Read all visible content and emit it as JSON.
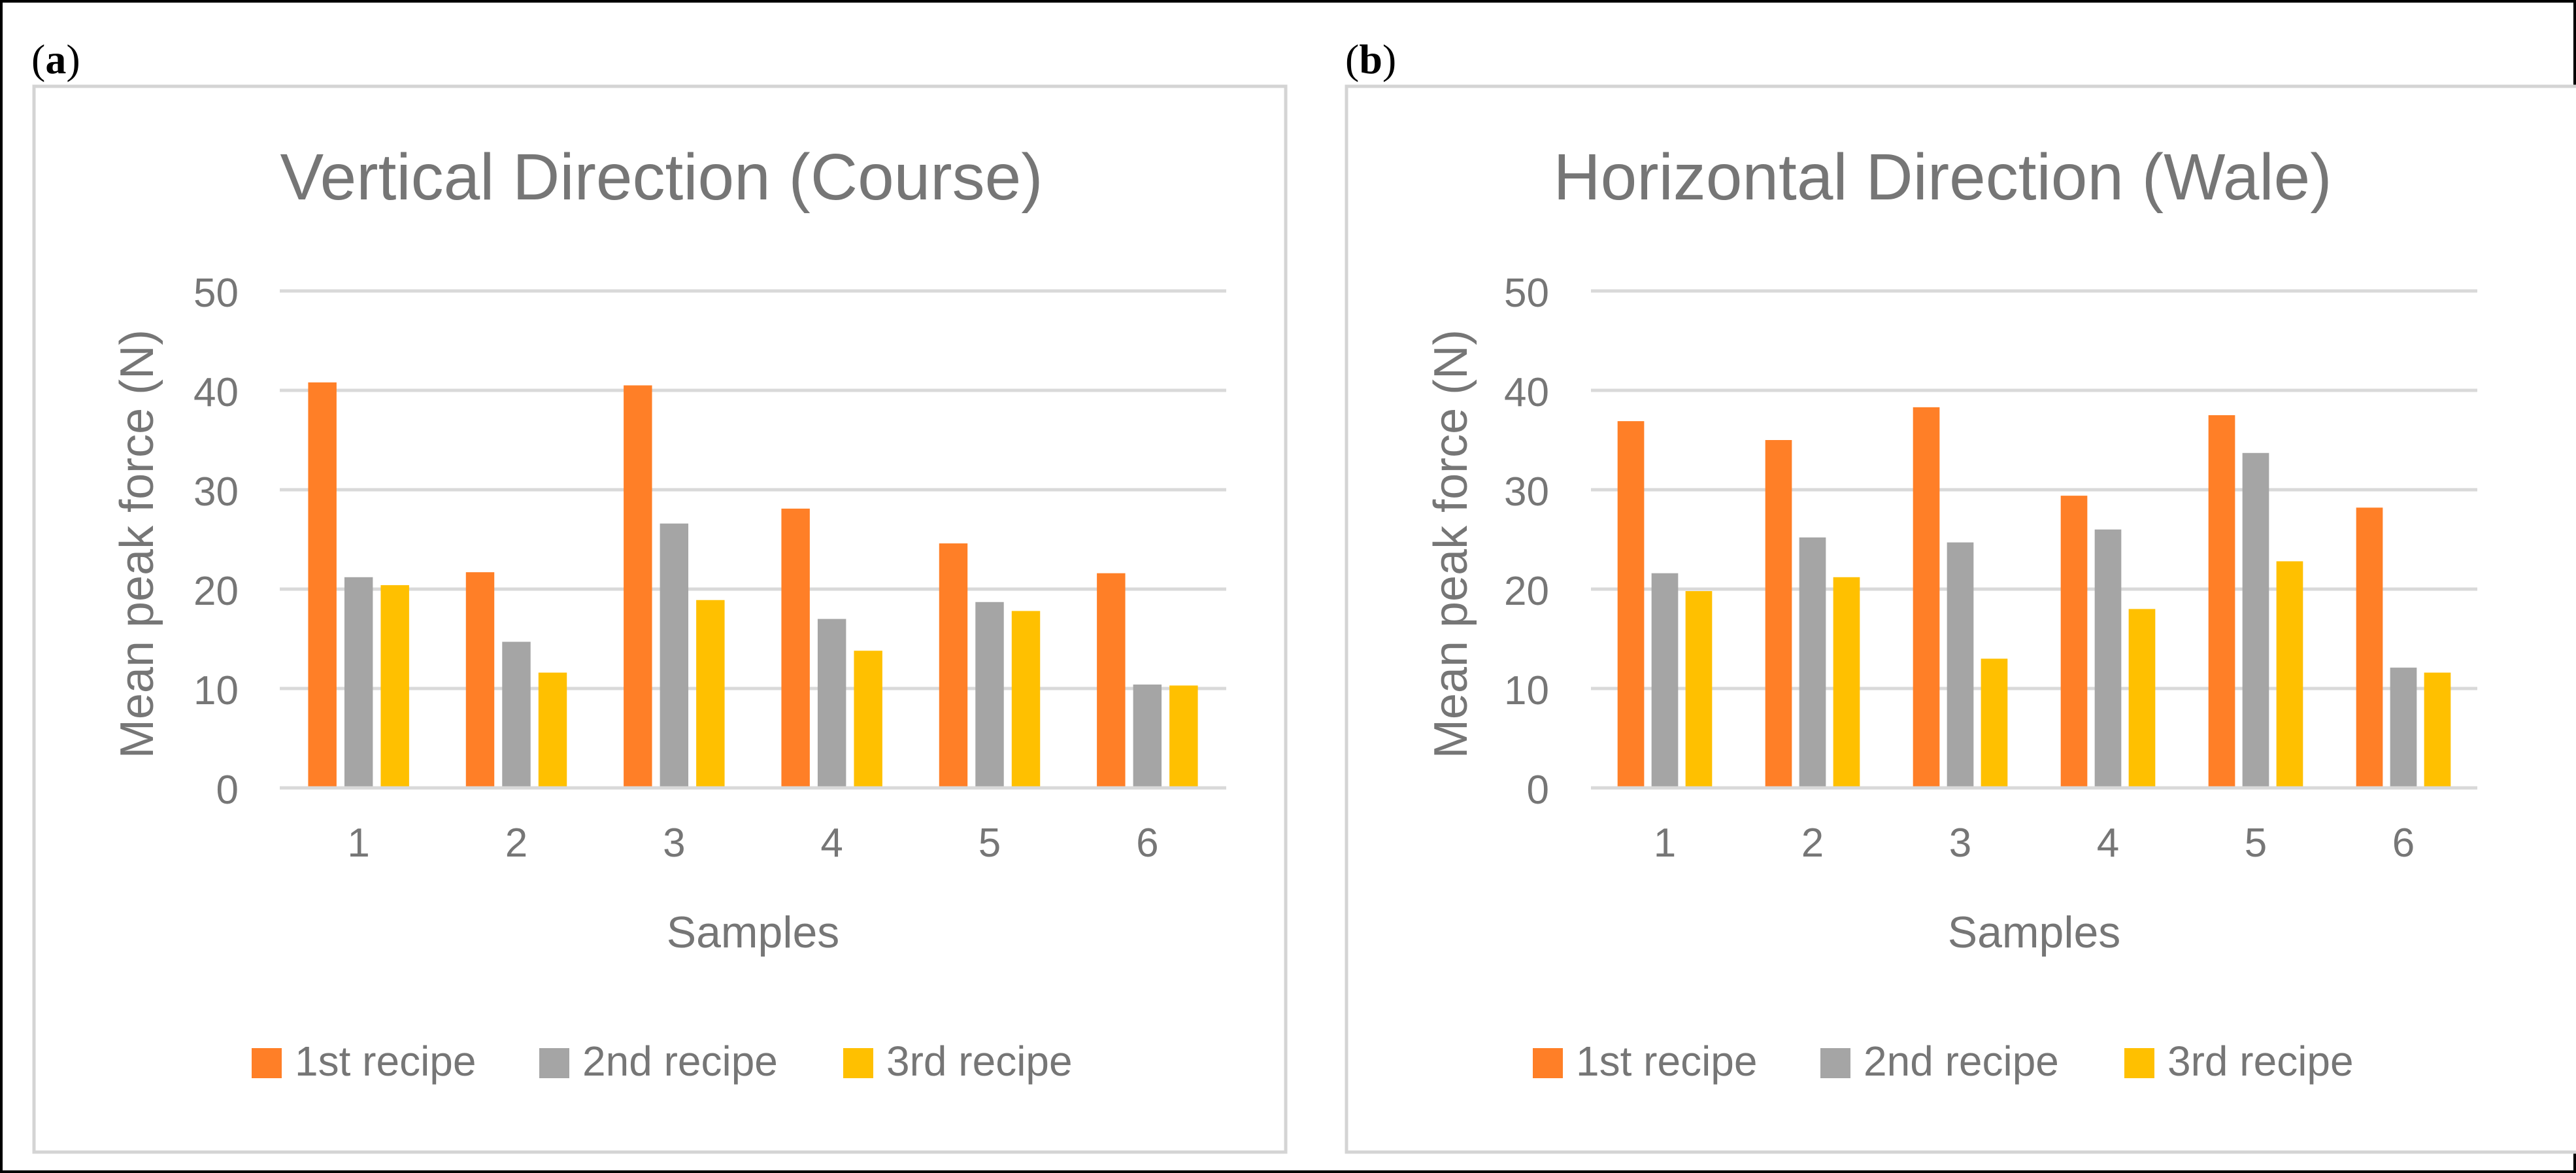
{
  "panels": [
    {
      "label_letter": "a",
      "label_open": "(",
      "label_close": ")"
    },
    {
      "label_letter": "b",
      "label_open": "(",
      "label_close": ")"
    }
  ],
  "colors": {
    "series": [
      "#FF7F27",
      "#A5A5A5",
      "#FFC000"
    ],
    "text": "#767676",
    "grid": "#D9D9D9",
    "frame": "#D4D4D4",
    "outer_border": "#000000"
  },
  "chart_data": [
    {
      "type": "bar",
      "title": "Vertical Direction (Course)",
      "xlabel": "Samples",
      "ylabel": "Mean peak force (N)",
      "ylim": [
        0,
        50
      ],
      "yticks": [
        0,
        10,
        20,
        30,
        40,
        50
      ],
      "grid": true,
      "legend": "bottom",
      "categories": [
        "1",
        "2",
        "3",
        "4",
        "5",
        "6"
      ],
      "series": [
        {
          "name": "1st recipe",
          "values": [
            40.8,
            21.7,
            40.5,
            28.1,
            24.6,
            21.6
          ]
        },
        {
          "name": "2nd recipe",
          "values": [
            21.2,
            14.7,
            26.6,
            17.0,
            18.7,
            10.4
          ]
        },
        {
          "name": "3rd recipe",
          "values": [
            20.4,
            11.6,
            18.9,
            13.8,
            17.8,
            10.3
          ]
        }
      ]
    },
    {
      "type": "bar",
      "title": "Horizontal Direction (Wale)",
      "xlabel": "Samples",
      "ylabel": "Mean peak force (N)",
      "ylim": [
        0,
        50
      ],
      "yticks": [
        0,
        10,
        20,
        30,
        40,
        50
      ],
      "grid": true,
      "legend": "bottom",
      "categories": [
        "1",
        "2",
        "3",
        "4",
        "5",
        "6"
      ],
      "series": [
        {
          "name": "1st recipe",
          "values": [
            36.9,
            35.0,
            38.3,
            29.4,
            37.5,
            28.2
          ]
        },
        {
          "name": "2nd recipe",
          "values": [
            21.6,
            25.2,
            24.7,
            26.0,
            33.7,
            12.1
          ]
        },
        {
          "name": "3rd recipe",
          "values": [
            19.8,
            21.2,
            13.0,
            18.0,
            22.8,
            11.6
          ]
        }
      ]
    }
  ]
}
